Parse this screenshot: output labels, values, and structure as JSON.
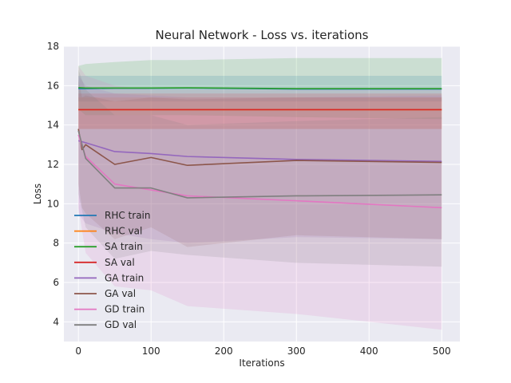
{
  "chart_data": {
    "type": "line",
    "title": "Neural Network - Loss vs. iterations",
    "xlabel": "Iterations",
    "ylabel": "Loss",
    "xlim": [
      -20,
      525
    ],
    "ylim": [
      3,
      18
    ],
    "xticks": [
      0,
      100,
      200,
      300,
      400,
      500
    ],
    "yticks": [
      4,
      6,
      8,
      10,
      12,
      14,
      16,
      18
    ],
    "grid": true,
    "style": "seaborn-darkgrid",
    "legend_position": "lower-left",
    "series": [
      {
        "name": "RHC train",
        "color": "#1f77b4",
        "x": [
          0,
          10,
          50,
          100,
          150,
          300,
          500
        ],
        "y": [
          15.85,
          15.85,
          15.87,
          15.87,
          15.88,
          15.83,
          15.83
        ],
        "lower": [
          15.2,
          15.2,
          15.2,
          15.2,
          15.2,
          15.2,
          15.2
        ],
        "upper": [
          16.5,
          16.5,
          16.5,
          16.5,
          16.5,
          16.5,
          16.5
        ]
      },
      {
        "name": "RHC val",
        "color": "#ff7f0e",
        "x": [
          0,
          10,
          50,
          100,
          150,
          300,
          500
        ],
        "y": [
          14.78,
          14.78,
          14.78,
          14.78,
          14.78,
          14.78,
          14.78
        ],
        "lower": [
          13.8,
          13.8,
          13.8,
          13.8,
          13.8,
          13.8,
          13.8
        ],
        "upper": [
          15.4,
          15.4,
          15.4,
          15.4,
          15.4,
          15.4,
          15.4
        ]
      },
      {
        "name": "SA train",
        "color": "#2ca02c",
        "x": [
          0,
          10,
          50,
          100,
          150,
          300,
          500
        ],
        "y": [
          15.9,
          15.88,
          15.88,
          15.88,
          15.89,
          15.85,
          15.85
        ],
        "lower": [
          14.8,
          14.5,
          14.5,
          14.5,
          14.5,
          14.4,
          14.3
        ],
        "upper": [
          17.0,
          17.1,
          17.2,
          17.3,
          17.3,
          17.4,
          17.4
        ]
      },
      {
        "name": "SA val",
        "color": "#d62728",
        "x": [
          0,
          10,
          50,
          100,
          150,
          300,
          500
        ],
        "y": [
          14.78,
          14.78,
          14.78,
          14.78,
          14.78,
          14.78,
          14.78
        ],
        "lower": [
          13.8,
          13.8,
          13.8,
          13.8,
          13.8,
          13.8,
          13.8
        ],
        "upper": [
          15.6,
          15.6,
          15.6,
          15.6,
          15.6,
          15.6,
          15.6
        ]
      },
      {
        "name": "GA train",
        "color": "#9467bd",
        "x": [
          0,
          10,
          50,
          100,
          150,
          300,
          500
        ],
        "y": [
          13.2,
          13.1,
          12.65,
          12.55,
          12.4,
          12.25,
          12.15
        ],
        "lower": [
          9.5,
          9.0,
          8.5,
          8.2,
          8.0,
          8.3,
          8.2
        ],
        "upper": [
          16.5,
          16.0,
          15.6,
          15.5,
          15.4,
          15.4,
          15.5
        ]
      },
      {
        "name": "GA val",
        "color": "#8c564b",
        "x": [
          0,
          5,
          10,
          50,
          100,
          150,
          300,
          500
        ],
        "y": [
          13.8,
          12.75,
          13.0,
          12.0,
          12.35,
          11.95,
          12.2,
          12.1
        ],
        "lower": [
          11.0,
          9.8,
          9.5,
          8.2,
          8.8,
          7.8,
          8.4,
          8.2
        ],
        "upper": [
          16.3,
          15.4,
          15.5,
          15.2,
          15.4,
          15.3,
          15.4,
          15.4
        ]
      },
      {
        "name": "GD train",
        "color": "#e377c2",
        "x": [
          0,
          10,
          50,
          100,
          150,
          300,
          500
        ],
        "y": [
          13.5,
          12.4,
          11.0,
          10.7,
          10.4,
          10.15,
          9.8
        ],
        "lower": [
          9.8,
          7.5,
          5.8,
          5.6,
          4.8,
          4.4,
          3.6
        ],
        "upper": [
          17.0,
          16.5,
          16.0,
          15.8,
          15.8,
          15.8,
          15.8
        ]
      },
      {
        "name": "GD val",
        "color": "#7f7f7f",
        "x": [
          0,
          10,
          50,
          100,
          150,
          300,
          500
        ],
        "y": [
          13.7,
          12.3,
          10.8,
          10.8,
          10.3,
          10.4,
          10.45
        ],
        "lower": [
          10.5,
          8.8,
          7.2,
          7.6,
          7.4,
          7.0,
          6.8
        ],
        "upper": [
          16.8,
          15.8,
          14.5,
          14.5,
          14.0,
          14.2,
          14.4
        ]
      }
    ]
  }
}
